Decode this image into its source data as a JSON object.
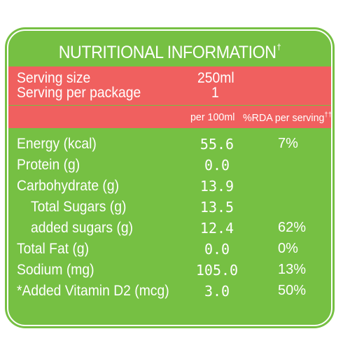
{
  "panel": {
    "title": "NUTRITIONAL INFORMATION",
    "title_mark": "†",
    "background_color": "#76c043",
    "band_color": "#f0605f"
  },
  "serving": {
    "size_label": "Serving size",
    "size_value": "250ml",
    "per_package_label": "Serving per package",
    "per_package_value": "1"
  },
  "columns": {
    "per100": "per 100ml",
    "rda": "%RDA per serving",
    "rda_mark": "††"
  },
  "rows": [
    {
      "name": "Energy (kcal)",
      "value": "55.6",
      "rda": "7%"
    },
    {
      "name": "Protein (g)",
      "value": "0.0",
      "rda": ""
    },
    {
      "name": "Carbohydrate (g)",
      "value": "13.9",
      "rda": ""
    },
    {
      "name": "Total Sugars (g)",
      "value": "13.5",
      "rda": ""
    },
    {
      "name": "added sugars (g)",
      "value": "12.4",
      "rda": "62%"
    },
    {
      "name": "Total Fat (g)",
      "value": "0.0",
      "rda": "0%"
    },
    {
      "name": "Sodium (mg)",
      "value": "105.0",
      "rda": "13%"
    },
    {
      "name": "*Added Vitamin D2 (mcg)",
      "value": "3.0",
      "rda": "50%"
    }
  ]
}
